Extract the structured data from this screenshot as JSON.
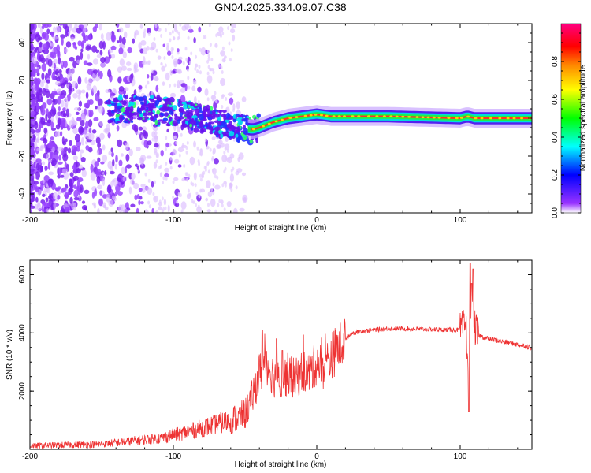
{
  "title": "GN04.2025.334.09.07.C38",
  "chart_data": [
    {
      "type": "heatmap",
      "xlabel": "Height of straight line (km)",
      "ylabel": "Frequency (Hz)",
      "xlim": [
        -200,
        150
      ],
      "ylim": [
        -50,
        50
      ],
      "xticks": [
        -200,
        -100,
        0,
        100
      ],
      "yticks": [
        -40,
        -20,
        0,
        20,
        40
      ],
      "ridge": {
        "x": [
          -140,
          -120,
          -100,
          -80,
          -60,
          -45,
          -40,
          -30,
          -20,
          -10,
          0,
          10,
          50,
          100,
          105,
          110,
          150
        ],
        "freq": [
          5,
          5,
          3,
          0,
          -4,
          -6,
          -5,
          -2,
          0,
          1,
          2,
          1,
          1,
          0,
          1,
          0,
          0
        ]
      },
      "colorbar": {
        "label": "Normalized spectral amplitude",
        "range": [
          0,
          1
        ],
        "ticks": [
          "0.0",
          "0.2",
          "0.4",
          "0.6",
          "0.8"
        ],
        "colors": [
          "#ffffff",
          "#9933ff",
          "#0000ff",
          "#00ffff",
          "#00ff00",
          "#ffff00",
          "#ff8800",
          "#ff0000",
          "#ff0080"
        ]
      }
    },
    {
      "type": "line",
      "xlabel": "Height of straight line (km)",
      "ylabel": "SNR (10 * v/v)",
      "xlim": [
        -200,
        150
      ],
      "ylim": [
        0,
        6500
      ],
      "xticks": [
        -200,
        -100,
        0,
        100
      ],
      "yticks": [
        2000,
        4000,
        6000
      ],
      "color": "#ee3333",
      "x": [
        -200,
        -150,
        -110,
        -90,
        -75,
        -60,
        -50,
        -45,
        -40,
        -35,
        -30,
        -25,
        -20,
        -15,
        -10,
        -5,
        0,
        5,
        10,
        15,
        20,
        25,
        30,
        40,
        50,
        60,
        80,
        100,
        104,
        106,
        108,
        110,
        113,
        120,
        130,
        150
      ],
      "y": [
        120,
        180,
        380,
        600,
        800,
        1000,
        1200,
        1800,
        2600,
        3000,
        2500,
        2300,
        2600,
        2400,
        2700,
        2600,
        3000,
        2800,
        3200,
        3500,
        3800,
        4000,
        4050,
        4100,
        4150,
        4150,
        4120,
        4100,
        4300,
        2500,
        5200,
        4200,
        3900,
        3800,
        3700,
        3500
      ],
      "spikes": [
        {
          "x": -38,
          "y": 4100
        },
        {
          "x": -28,
          "y": 3800
        },
        {
          "x": -24,
          "y": 3400
        },
        {
          "x": 106,
          "y": 1300
        },
        {
          "x": 107,
          "y": 6400
        },
        {
          "x": 108,
          "y": 5700
        },
        {
          "x": 109,
          "y": 6200
        }
      ]
    }
  ]
}
